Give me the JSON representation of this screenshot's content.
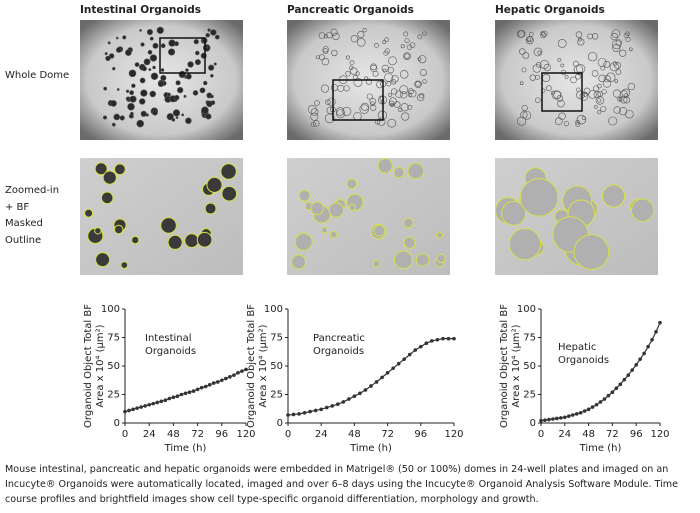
{
  "columns": [
    "Intestinal Organoids",
    "Pancreatic Organoids",
    "Hepatic Organoids"
  ],
  "rows": {
    "whole": "Whole Dome",
    "zoomed": [
      "Zoomed-in",
      "+ BF",
      "Masked",
      "Outline"
    ]
  },
  "caption": "Mouse intestinal, pancreatic and hepatic organoids were embedded in Matrigel® (50 or 100%) domes in 24-well plates and imaged on an Incucyte® Organoids were automatically located, imaged and over 6–8 days using the Incucyte® Organoid Analysis Software Module. Time course profiles and brightfield images show cell type-specific organoid differentiation, morphology and growth.",
  "chart_data": [
    {
      "type": "line",
      "annotation": [
        "Intestinal",
        "Organoids"
      ],
      "ylabel": [
        "Organoid Object Total BF",
        "Area x 10⁴ (µm²)"
      ],
      "xlabel": "Time (h)",
      "xlim": [
        0,
        120
      ],
      "ylim": [
        0,
        100
      ],
      "xticks": [
        0,
        24,
        48,
        72,
        96,
        120
      ],
      "yticks": [
        0,
        25,
        50,
        75,
        100
      ],
      "x": [
        0,
        4,
        8,
        12,
        16,
        20,
        24,
        28,
        32,
        36,
        40,
        44,
        48,
        52,
        56,
        60,
        64,
        68,
        72,
        76,
        80,
        84,
        88,
        92,
        96,
        100,
        104,
        108,
        112,
        116,
        120
      ],
      "series": [
        {
          "color": "#333333",
          "values": [
            10,
            11,
            12,
            13,
            14,
            15,
            16,
            17,
            18,
            19,
            20,
            21.5,
            22.5,
            23.5,
            25,
            26,
            27,
            28,
            29.5,
            31,
            32,
            33.5,
            35,
            36,
            37.5,
            39,
            40.5,
            42,
            44,
            45.5,
            47
          ]
        }
      ]
    },
    {
      "type": "line",
      "annotation": [
        "Pancreatic",
        "Organoids"
      ],
      "ylabel": [
        "Organoid Object Total BF",
        "Area x 10⁴ (µm²)"
      ],
      "xlabel": "Time (h)",
      "xlim": [
        0,
        120
      ],
      "ylim": [
        0,
        100
      ],
      "xticks": [
        0,
        24,
        48,
        72,
        96,
        120
      ],
      "yticks": [
        0,
        25,
        50,
        75,
        100
      ],
      "x": [
        0,
        4,
        8,
        12,
        16,
        20,
        24,
        28,
        32,
        36,
        40,
        44,
        48,
        52,
        56,
        60,
        64,
        68,
        72,
        76,
        80,
        84,
        88,
        92,
        96,
        100,
        104,
        108,
        112,
        116,
        120
      ],
      "series": [
        {
          "color": "#333333",
          "values": [
            7,
            7.5,
            8,
            9,
            10,
            11,
            12,
            13.5,
            15,
            16.5,
            18.5,
            21,
            23.5,
            26,
            29,
            32.5,
            36,
            40,
            44,
            48,
            52,
            56,
            60,
            64,
            67,
            70,
            72,
            73,
            74,
            74,
            74
          ]
        }
      ]
    },
    {
      "type": "line",
      "annotation": [
        "Hepatic",
        "Organoids"
      ],
      "ylabel": [
        "Organoid Object Total BF",
        "Area x 10⁴ (µm²)"
      ],
      "xlabel": "Time (h)",
      "xlim": [
        0,
        120
      ],
      "ylim": [
        0,
        100
      ],
      "xticks": [
        0,
        24,
        48,
        72,
        96,
        120
      ],
      "yticks": [
        0,
        25,
        50,
        75,
        100
      ],
      "x": [
        0,
        4,
        8,
        12,
        16,
        20,
        24,
        28,
        32,
        36,
        40,
        44,
        48,
        52,
        56,
        60,
        64,
        68,
        72,
        76,
        80,
        84,
        88,
        92,
        96,
        100,
        104,
        108,
        112,
        116,
        120
      ],
      "series": [
        {
          "color": "#333333",
          "values": [
            2,
            2.5,
            3,
            3.5,
            4,
            4.5,
            5,
            6,
            7,
            8,
            9,
            10.5,
            12,
            14,
            16,
            18.5,
            21,
            24,
            27,
            30.5,
            34,
            38,
            42,
            46.5,
            51,
            56,
            61,
            67,
            73,
            80,
            88
          ]
        }
      ]
    }
  ]
}
